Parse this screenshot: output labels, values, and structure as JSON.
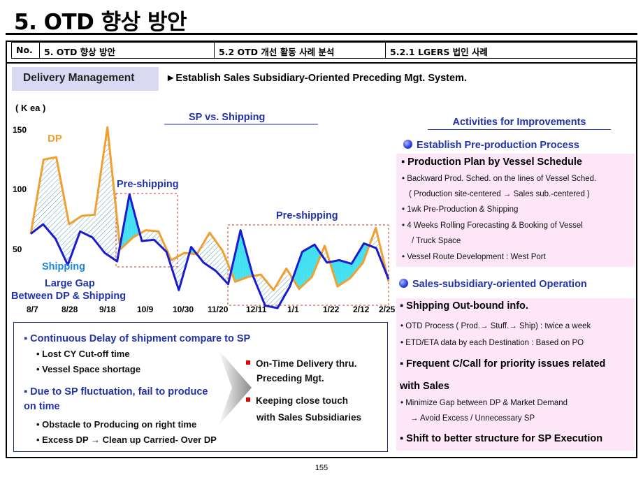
{
  "page_title": "5. OTD 향상 방안",
  "header": {
    "no": "No.",
    "col1": "5. OTD 향상 방안",
    "col2": "5.2 OTD 개선 활동 사례 분석",
    "col3": "5.2.1 LGERS 법인 사례"
  },
  "delivery": {
    "label": "Delivery Management",
    "subtitle": "►Establish Sales Subsidiary-Oriented Preceding Mgt. System."
  },
  "chart_data": {
    "type": "line",
    "title": "SP vs. Shipping",
    "ylabel": "( K ea )",
    "ylim": [
      0,
      150
    ],
    "yticks": [
      "150",
      "100",
      "50"
    ],
    "xtick_labels": [
      "8/7",
      "8/28",
      "9/18",
      "10/9",
      "10/30",
      "11/20",
      "12/11",
      "1/1",
      "1/22",
      "2/12",
      "2/25"
    ],
    "series": [
      {
        "name": "DP",
        "color": "#f0a030",
        "values": [
          62,
          124,
          126,
          70,
          77,
          78,
          151,
          49,
          59,
          65,
          64,
          40,
          46,
          45,
          63,
          48,
          22,
          26,
          28,
          15,
          33,
          16,
          26,
          52,
          18,
          25,
          38,
          67,
          22
        ]
      },
      {
        "name": "Shipping",
        "color": "#1a1ad0",
        "values": [
          62,
          70,
          58,
          36,
          64,
          59,
          46,
          39,
          95,
          56,
          57,
          47,
          15,
          51,
          38,
          31,
          20,
          65,
          27,
          2,
          0,
          18,
          47,
          53,
          38,
          40,
          37,
          54,
          50,
          24
        ]
      }
    ],
    "annotations": [
      "DP",
      "Pre-shipping",
      "Pre-shipping",
      "Shipping",
      "Large Gap",
      "Between DP & Shipping"
    ]
  },
  "lower": {
    "h1": "▪ Continuous Delay of shipment compare to SP",
    "b1": "• Lost CY Cut-off time",
    "b2": "• Vessel Space shortage",
    "h2a": "▪ Due to SP fluctuation, fail to produce",
    "h2b": "on time",
    "b3": "• Obstacle to Producing on right time",
    "b4": "• Excess DP → Clean up Carried- Over DP",
    "r1a": "On-Time Delivery thru.",
    "r1b": "Preceding Mgt.",
    "r2a": "Keeping close touch",
    "r2b": "with Sales Subsidiaries"
  },
  "activities": {
    "title": "Activities for Improvements",
    "sec1": "Establish Pre-production Process",
    "p1_head": "▪ Production Plan by Vessel Schedule",
    "p1_items": [
      "• Backward Prod. Sched. on the lines of Vessel Sched.",
      "( Production site-centered → Sales    sub.-centered )",
      "• 1wk Pre-Production & Shipping",
      "• 4 Weeks Rolling Forecasting & Booking of  Vessel",
      "/ Truck Space",
      "• Vessel Route Development   : West Port"
    ],
    "sec2": "Sales-subsidiary-oriented Operation",
    "p2_head1": "▪ Shipping Out-bound info.",
    "p2_items1": [
      "• OTD Process ( Prod.→ Stuff.→ Ship) : twice a week",
      "• ETD/ETA data by each Destination : Based on PO"
    ],
    "p2_head2a": "▪ Frequent C/Call for priority issues related",
    "p2_head2b": "with Sales",
    "p2_items2": [
      "• Minimize Gap between DP & Market Demand",
      "→ Avoid Excess / Unnecessary SP"
    ],
    "p2_head3": "▪ Shift to better structure for SP Execution"
  },
  "page_number": "155"
}
